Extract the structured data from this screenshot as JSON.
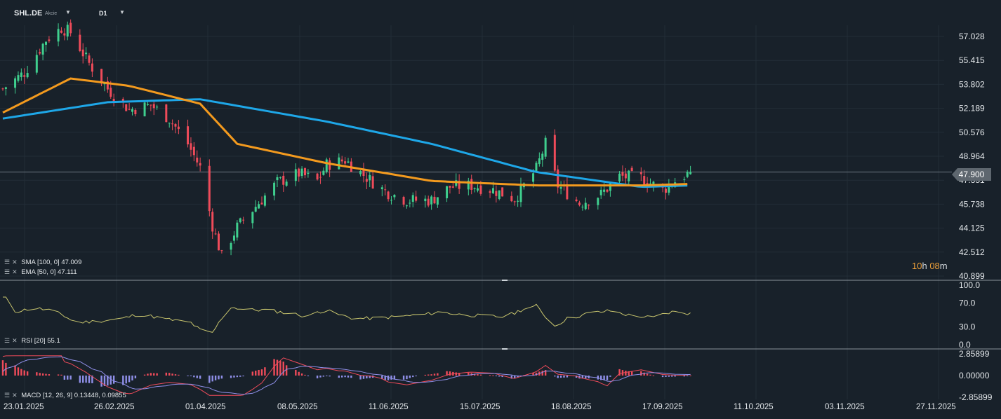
{
  "header": {
    "ticker": "SHL.DE",
    "instrument_type": "Akcie",
    "timeframe": "D1"
  },
  "price_axis": [
    "57.028",
    "55.415",
    "53.802",
    "52.189",
    "50.576",
    "48.964",
    "47.351",
    "45.738",
    "44.125",
    "42.512",
    "40.899"
  ],
  "current_price": "47.900",
  "countdown": {
    "hours": "10",
    "h": "h",
    "minutes": "08",
    "m": "m"
  },
  "indicators": {
    "sma": {
      "label": "SMA [100, 0]",
      "value": "47.009"
    },
    "ema": {
      "label": "EMA [50, 0]",
      "value": "47.111"
    },
    "rsi": {
      "label": "RSI [20]",
      "value": "55.1",
      "levels": [
        "100.0",
        "70.0",
        "30.0",
        "0.0"
      ]
    },
    "macd": {
      "label": "MACD [12, 26, 9]",
      "value1": "0.13448",
      "value2": "0.09855",
      "levels": [
        "2.85899",
        "0.00000",
        "-2.85899"
      ]
    }
  },
  "dates": [
    "23.01.2025",
    "26.02.2025",
    "01.04.2025",
    "08.05.2025",
    "11.06.2025",
    "15.07.2025",
    "18.08.2025",
    "17.09.2025",
    "11.10.2025",
    "03.11.2025",
    "27.11.2025"
  ],
  "colors": {
    "background": "#18212a",
    "bull": "#3fcf8e",
    "bear": "#ef4b5a",
    "sma": "#1ea7e8",
    "ema": "#f39a1e",
    "rsi": "#c9c66e",
    "macd_line": "#ef4b5a",
    "signal_line": "#8f8fe8",
    "hist_pos": "#ef4b5a",
    "hist_neg": "#8f8fe8",
    "countdown": "#f0a23a"
  },
  "chart_data": {
    "type": "candlestick",
    "symbol": "SHL.DE",
    "timeframe": "D1",
    "y_range": [
      40.899,
      57.028
    ],
    "x_range": [
      "23.01.2025",
      "27.11.2025"
    ],
    "sma_100_last": 47.009,
    "ema_50_last": 47.111,
    "last_price": 47.9,
    "close_path": [
      [
        "23.01.2025",
        53.5
      ],
      [
        "30.01.2025",
        54.6
      ],
      [
        "06.02.2025",
        56.8
      ],
      [
        "11.02.2025",
        57.6
      ],
      [
        "14.02.2025",
        57.3
      ],
      [
        "20.02.2025",
        55.2
      ],
      [
        "26.02.2025",
        53.5
      ],
      [
        "05.03.2025",
        52.1
      ],
      [
        "12.03.2025",
        52.4
      ],
      [
        "18.03.2025",
        51.5
      ],
      [
        "24.03.2025",
        49.8
      ],
      [
        "28.03.2025",
        48.2
      ],
      [
        "01.04.2025",
        44.3
      ],
      [
        "04.04.2025",
        42.2
      ],
      [
        "09.04.2025",
        44.2
      ],
      [
        "15.04.2025",
        45.6
      ],
      [
        "22.04.2025",
        47.2
      ],
      [
        "29.04.2025",
        47.8
      ],
      [
        "05.05.2025",
        47.3
      ],
      [
        "08.05.2025",
        48.4
      ],
      [
        "14.05.2025",
        48.7
      ],
      [
        "20.05.2025",
        47.7
      ],
      [
        "27.05.2025",
        46.6
      ],
      [
        "03.06.2025",
        46.0
      ],
      [
        "11.06.2025",
        46.0
      ],
      [
        "17.06.2025",
        46.9
      ],
      [
        "24.06.2025",
        47.0
      ],
      [
        "01.07.2025",
        46.7
      ],
      [
        "08.07.2025",
        46.1
      ],
      [
        "15.07.2025",
        48.1
      ],
      [
        "18.07.2025",
        49.8
      ],
      [
        "22.07.2025",
        47.0
      ],
      [
        "29.07.2025",
        45.8
      ],
      [
        "05.08.2025",
        46.4
      ],
      [
        "11.08.2025",
        47.6
      ],
      [
        "18.08.2025",
        47.5
      ],
      [
        "25.08.2025",
        46.7
      ],
      [
        "29.08.2025",
        47.3
      ],
      [
        "03.09.2025",
        47.9
      ]
    ],
    "sma_path": [
      [
        "23.01.2025",
        51.5
      ],
      [
        "26.02.2025",
        52.6
      ],
      [
        "28.03.2025",
        52.8
      ],
      [
        "08.05.2025",
        51.3
      ],
      [
        "11.06.2025",
        49.8
      ],
      [
        "15.07.2025",
        47.9
      ],
      [
        "18.08.2025",
        46.9
      ],
      [
        "03.09.2025",
        47.0
      ]
    ],
    "ema_path": [
      [
        "23.01.2025",
        51.9
      ],
      [
        "14.02.2025",
        54.2
      ],
      [
        "05.03.2025",
        53.7
      ],
      [
        "28.03.2025",
        52.5
      ],
      [
        "09.04.2025",
        49.8
      ],
      [
        "08.05.2025",
        48.5
      ],
      [
        "11.06.2025",
        47.3
      ],
      [
        "15.07.2025",
        47.0
      ],
      [
        "18.08.2025",
        47.0
      ],
      [
        "03.09.2025",
        47.1
      ]
    ],
    "rsi_range": [
      0,
      100
    ],
    "rsi_last": 55.1,
    "macd_range": [
      -2.85899,
      2.85899
    ],
    "macd_last": 0.13448,
    "signal_last": 0.09855
  }
}
